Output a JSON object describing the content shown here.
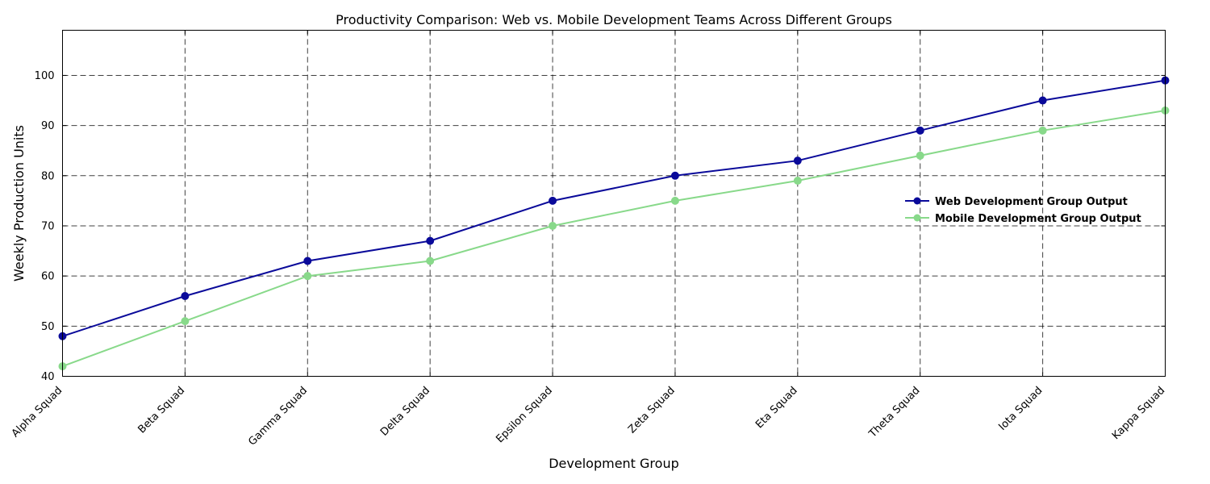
{
  "chart_data": {
    "type": "line",
    "title": "Productivity Comparison: Web vs. Mobile Development Teams Across Different Groups",
    "xlabel": "Development Group",
    "ylabel": "Weekly Production Units",
    "categories": [
      "Alpha Squad",
      "Beta Squad",
      "Gamma Squad",
      "Delta Squad",
      "Epsilon Squad",
      "Zeta Squad",
      "Eta Squad",
      "Theta Squad",
      "Iota Squad",
      "Kappa Squad"
    ],
    "ylim": [
      40,
      109
    ],
    "yticks": [
      40,
      50,
      60,
      70,
      80,
      90,
      100
    ],
    "grid": true,
    "legend_position": "center-right",
    "series": [
      {
        "name": "Web Development Group Output",
        "color": "#0a0a9a",
        "marker": "circle",
        "values": [
          48,
          56,
          63,
          67,
          75,
          80,
          83,
          89,
          95,
          99
        ]
      },
      {
        "name": "Mobile Development Group Output",
        "color": "#88d98a",
        "marker": "circle",
        "values": [
          42,
          51,
          60,
          63,
          70,
          75,
          79,
          84,
          89,
          93
        ]
      }
    ]
  }
}
